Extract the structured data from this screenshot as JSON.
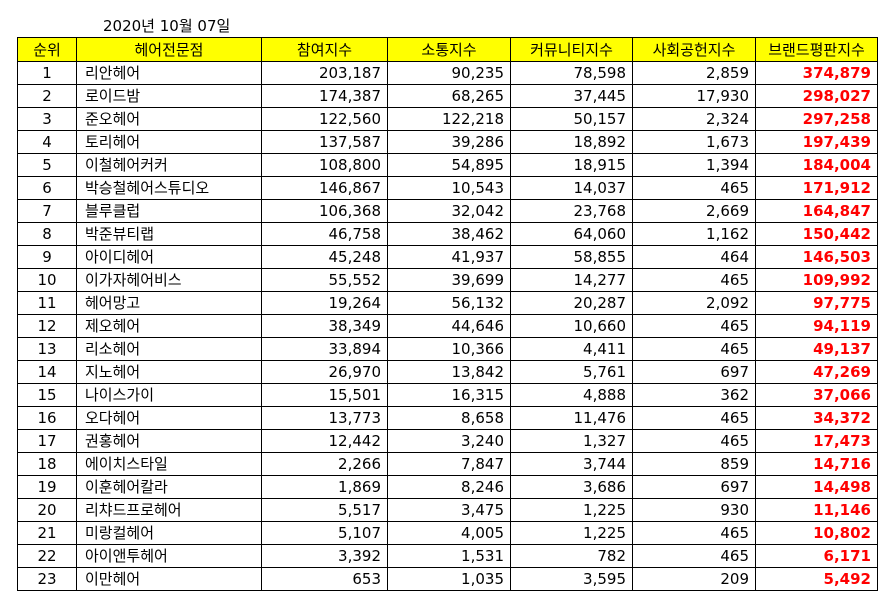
{
  "date": "2020년 10월 07일",
  "headers": [
    "순위",
    "헤어전문점",
    "참여지수",
    "소통지수",
    "커뮤니티지수",
    "사회공헌지수",
    "브랜드평판지수"
  ],
  "rows": [
    [
      "1",
      "리안헤어",
      "203,187",
      "90,235",
      "78,598",
      "2,859",
      "374,879"
    ],
    [
      "2",
      "로이드밤",
      "174,387",
      "68,265",
      "37,445",
      "17,930",
      "298,027"
    ],
    [
      "3",
      "준오헤어",
      "122,560",
      "122,218",
      "50,157",
      "2,324",
      "297,258"
    ],
    [
      "4",
      "토리헤어",
      "137,587",
      "39,286",
      "18,892",
      "1,673",
      "197,439"
    ],
    [
      "5",
      "이철헤어커커",
      "108,800",
      "54,895",
      "18,915",
      "1,394",
      "184,004"
    ],
    [
      "6",
      "박승철헤어스튜디오",
      "146,867",
      "10,543",
      "14,037",
      "465",
      "171,912"
    ],
    [
      "7",
      "블루클럽",
      "106,368",
      "32,042",
      "23,768",
      "2,669",
      "164,847"
    ],
    [
      "8",
      "박준뷰티랩",
      "46,758",
      "38,462",
      "64,060",
      "1,162",
      "150,442"
    ],
    [
      "9",
      "아이디헤어",
      "45,248",
      "41,937",
      "58,855",
      "464",
      "146,503"
    ],
    [
      "10",
      "이가자헤어비스",
      "55,552",
      "39,699",
      "14,277",
      "465",
      "109,992"
    ],
    [
      "11",
      "헤어망고",
      "19,264",
      "56,132",
      "20,287",
      "2,092",
      "97,775"
    ],
    [
      "12",
      "제오헤어",
      "38,349",
      "44,646",
      "10,660",
      "465",
      "94,119"
    ],
    [
      "13",
      "리소헤어",
      "33,894",
      "10,366",
      "4,411",
      "465",
      "49,137"
    ],
    [
      "14",
      "지노헤어",
      "26,970",
      "13,842",
      "5,761",
      "697",
      "47,269"
    ],
    [
      "15",
      "나이스가이",
      "15,501",
      "16,315",
      "4,888",
      "362",
      "37,066"
    ],
    [
      "16",
      "오다헤어",
      "13,773",
      "8,658",
      "11,476",
      "465",
      "34,372"
    ],
    [
      "17",
      "권홍헤어",
      "12,442",
      "3,240",
      "1,327",
      "465",
      "17,473"
    ],
    [
      "18",
      "에이치스타일",
      "2,266",
      "7,847",
      "3,744",
      "859",
      "14,716"
    ],
    [
      "19",
      "이훈헤어칼라",
      "1,869",
      "8,246",
      "3,686",
      "697",
      "14,498"
    ],
    [
      "20",
      "리챠드프로헤어",
      "5,517",
      "3,475",
      "1,225",
      "930",
      "11,146"
    ],
    [
      "21",
      "미랑컬헤어",
      "5,107",
      "4,005",
      "1,225",
      "465",
      "10,802"
    ],
    [
      "22",
      "아이앤투헤어",
      "3,392",
      "1,531",
      "782",
      "465",
      "6,171"
    ],
    [
      "23",
      "이만헤어",
      "653",
      "1,035",
      "3,595",
      "209",
      "5,492"
    ]
  ]
}
